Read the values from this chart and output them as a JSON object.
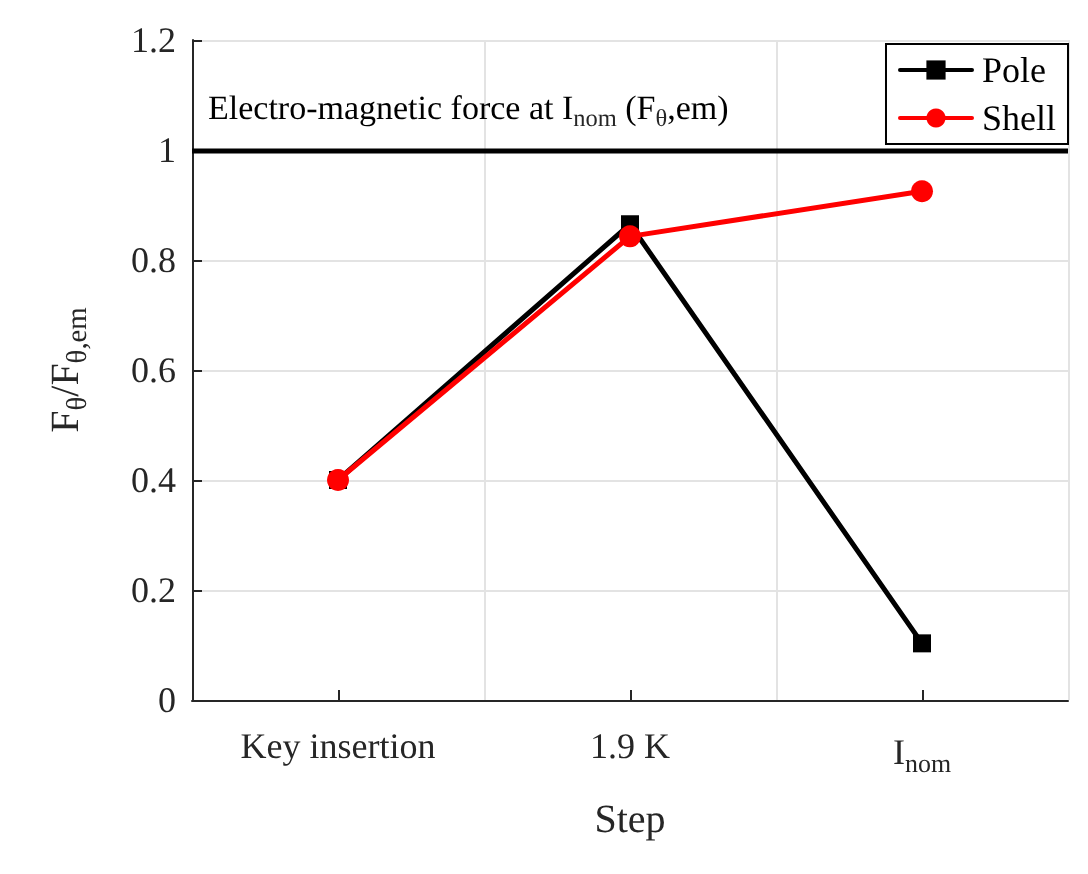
{
  "chart_data": {
    "type": "line",
    "xlabel": "Step",
    "ylabel": "F$_{θ}$/F$_{θ,em}$",
    "categories": [
      "Key insertion",
      "1.9 K",
      "I$_{nom}$"
    ],
    "series": [
      {
        "name": "Pole",
        "color": "#000000",
        "marker": "square",
        "values": [
          0.4,
          0.865,
          0.103
        ]
      },
      {
        "name": "Shell",
        "color": "#ff0000",
        "marker": "circle",
        "values": [
          0.4,
          0.843,
          0.925
        ]
      }
    ],
    "ylim": [
      0,
      1.2
    ],
    "yticks": [
      0,
      0.2,
      0.4,
      0.6,
      0.8,
      1,
      1.2
    ],
    "ref_lines": [
      {
        "axis": "y",
        "value": 1,
        "label": "Electro-magnetic force at I$_{nom}$ (F$_{θ}$,em)",
        "color": "#000000",
        "line_style": "solid"
      }
    ],
    "grid": true,
    "legend": "top right",
    "line_style": "solid"
  }
}
